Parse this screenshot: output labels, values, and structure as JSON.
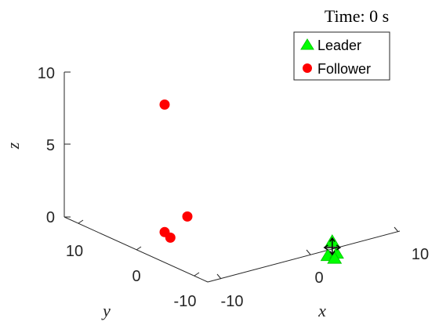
{
  "chart_data": {
    "type": "scatter",
    "title": "Time: 0 s",
    "xlabel": "x",
    "ylabel": "y",
    "zlabel": "z",
    "x_ticks": [
      "-10",
      "0",
      "10"
    ],
    "y_ticks": [
      "-10",
      "0",
      "10"
    ],
    "z_ticks": [
      "0",
      "5",
      "10"
    ],
    "legend_position": "top-right",
    "series": [
      {
        "name": "Leader",
        "marker": "triangle",
        "color": "#00ff00",
        "points": [
          [
            0.5,
            -3.2,
            1.2
          ],
          [
            0.0,
            -3.2,
            0.3
          ],
          [
            1.0,
            -3.2,
            0.3
          ],
          [
            0.5,
            -3.6,
            0.1
          ]
        ]
      },
      {
        "name": "Follower",
        "marker": "circle",
        "color": "#ff0000",
        "points": [
          [
            -10,
            10,
            10
          ],
          [
            -10,
            10,
            1.2
          ],
          [
            -10,
            9,
            1
          ],
          [
            -10,
            6,
            3
          ]
        ]
      }
    ],
    "arrow_color": "#000000"
  }
}
